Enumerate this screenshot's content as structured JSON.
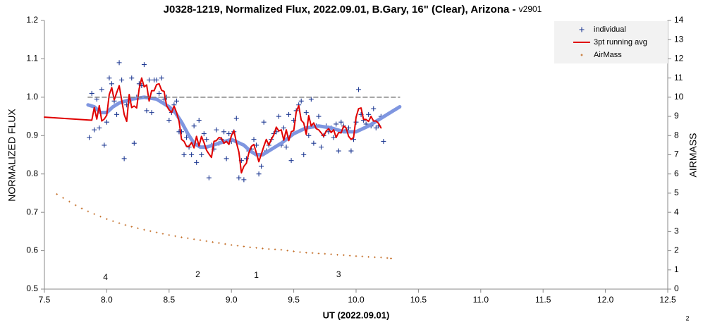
{
  "chart_data": {
    "type": "line",
    "title": "J0328-1219, Normalized Flux, 2022.09.01, B.Gary, 16\" (Clear), Arizona - ",
    "subtitle": "v2901",
    "x_label": "UT (2022.09.01)",
    "y_label": "NORMALIZED FLUX",
    "y2_label": "AIRMASS",
    "footnote": "2",
    "xlim": [
      7.5,
      12.5
    ],
    "xticks": [
      7.5,
      {
        "value": 8,
        "label": "8.0"
      },
      8.5,
      {
        "value": 9,
        "label": "9.0"
      },
      9.5,
      {
        "value": 10,
        "label": "10.0"
      },
      10.5,
      {
        "value": 11,
        "label": "11.0"
      },
      11.5,
      {
        "value": 12,
        "label": "12.0"
      },
      12.5
    ],
    "ylim": [
      0.5,
      1.2
    ],
    "yticks": [
      0.5,
      0.6,
      0.7,
      0.8,
      0.9,
      {
        "value": 1,
        "label": "1.0"
      },
      1.1,
      1.2
    ],
    "y2lim": [
      0,
      14
    ],
    "y2ticks": [
      0,
      1,
      2,
      3,
      4,
      5,
      6,
      7,
      8,
      9,
      10,
      11,
      12,
      13,
      14
    ],
    "grid": false,
    "legend": "upper right",
    "series": [
      {
        "name": "individual",
        "kind": "points",
        "marker": "plus",
        "color": "#1f3a93",
        "x": [
          7.86,
          7.88,
          7.9,
          7.92,
          7.94,
          7.96,
          7.98,
          8.0,
          8.02,
          8.04,
          8.06,
          8.08,
          8.1,
          8.12,
          8.14,
          8.16,
          8.18,
          8.2,
          8.22,
          8.24,
          8.26,
          8.28,
          8.3,
          8.32,
          8.34,
          8.36,
          8.38,
          8.4,
          8.42,
          8.44,
          8.46,
          8.48,
          8.5,
          8.52,
          8.54,
          8.56,
          8.58,
          8.6,
          8.62,
          8.64,
          8.66,
          8.68,
          8.7,
          8.72,
          8.74,
          8.76,
          8.78,
          8.8,
          8.82,
          8.84,
          8.86,
          8.88,
          8.9,
          8.92,
          8.94,
          8.96,
          8.98,
          9.0,
          9.02,
          9.04,
          9.06,
          9.08,
          9.1,
          9.12,
          9.14,
          9.16,
          9.18,
          9.2,
          9.22,
          9.24,
          9.26,
          9.28,
          9.3,
          9.32,
          9.34,
          9.36,
          9.38,
          9.4,
          9.42,
          9.44,
          9.46,
          9.48,
          9.5,
          9.52,
          9.54,
          9.56,
          9.58,
          9.6,
          9.62,
          9.64,
          9.66,
          9.68,
          9.7,
          9.72,
          9.74,
          9.76,
          9.78,
          9.8,
          9.82,
          9.84,
          9.86,
          9.88,
          9.9,
          9.92,
          9.94,
          9.96,
          9.98,
          10.0,
          10.02,
          10.04,
          10.06,
          10.08,
          10.1,
          10.12,
          10.14,
          10.16,
          10.18,
          10.2,
          10.22
        ],
        "values": [
          0.895,
          1.01,
          0.915,
          0.995,
          0.92,
          1.02,
          0.875,
          0.935,
          1.05,
          1.035,
          0.99,
          0.955,
          1.09,
          1.045,
          0.84,
          0.98,
          0.99,
          1.05,
          0.88,
          1.0,
          1.035,
          1.03,
          1.085,
          0.965,
          1.045,
          0.96,
          1.045,
          1.045,
          1.01,
          1.05,
          0.995,
          1.0,
          0.94,
          0.96,
          0.98,
          0.99,
          0.91,
          0.91,
          0.85,
          0.895,
          0.87,
          0.85,
          0.925,
          0.83,
          0.94,
          0.85,
          0.905,
          0.89,
          0.79,
          0.875,
          0.865,
          0.915,
          0.88,
          0.89,
          0.91,
          0.84,
          0.905,
          0.885,
          0.91,
          0.945,
          0.79,
          0.835,
          0.785,
          0.84,
          0.86,
          0.865,
          0.89,
          0.875,
          0.8,
          0.82,
          0.935,
          0.86,
          0.875,
          0.89,
          0.905,
          0.91,
          0.95,
          0.875,
          0.92,
          0.87,
          0.955,
          0.835,
          0.94,
          0.965,
          0.98,
          0.99,
          0.85,
          0.96,
          0.9,
          0.995,
          0.88,
          0.925,
          0.95,
          0.87,
          0.9,
          0.925,
          0.91,
          0.92,
          0.895,
          0.93,
          0.86,
          0.935,
          0.925,
          0.915,
          0.92,
          0.86,
          0.89,
          0.935,
          1.02,
          0.955,
          0.94,
          0.93,
          0.955,
          0.925,
          0.97,
          0.92,
          0.925,
          0.95,
          0.885
        ]
      },
      {
        "kind": "line",
        "color": "#7f96e0",
        "line_width": 5,
        "x": [
          7.85,
          7.9,
          7.95,
          8.0,
          8.05,
          8.1,
          8.2,
          8.3,
          8.4,
          8.5,
          8.55,
          8.6,
          8.65,
          8.7,
          8.75,
          8.8,
          8.9,
          9.0,
          9.1,
          9.15,
          9.2,
          9.25,
          9.3,
          9.4,
          9.5,
          9.6,
          9.7,
          9.8,
          9.9,
          10.0,
          10.1,
          10.2,
          10.3,
          10.35
        ],
        "values": [
          0.98,
          0.975,
          0.96,
          0.96,
          0.975,
          0.985,
          0.995,
          1.0,
          0.995,
          0.975,
          0.96,
          0.935,
          0.905,
          0.88,
          0.87,
          0.87,
          0.88,
          0.89,
          0.875,
          0.86,
          0.85,
          0.85,
          0.86,
          0.88,
          0.905,
          0.92,
          0.925,
          0.92,
          0.91,
          0.91,
          0.925,
          0.945,
          0.965,
          0.975
        ]
      },
      {
        "name": "3pt running avg",
        "kind": "line",
        "color": "#e00000",
        "line_width": 2,
        "x": [
          7.5,
          7.88,
          7.9,
          7.92,
          7.94,
          7.96,
          7.98,
          8.0,
          8.02,
          8.04,
          8.06,
          8.08,
          8.1,
          8.12,
          8.14,
          8.16,
          8.18,
          8.2,
          8.22,
          8.24,
          8.26,
          8.28,
          8.3,
          8.32,
          8.34,
          8.36,
          8.38,
          8.4,
          8.42,
          8.44,
          8.46,
          8.48,
          8.5,
          8.52,
          8.54,
          8.56,
          8.58,
          8.6,
          8.62,
          8.64,
          8.66,
          8.68,
          8.7,
          8.72,
          8.74,
          8.76,
          8.78,
          8.8,
          8.82,
          8.84,
          8.86,
          8.88,
          8.9,
          8.92,
          8.94,
          8.96,
          8.98,
          9.0,
          9.02,
          9.04,
          9.06,
          9.08,
          9.1,
          9.12,
          9.14,
          9.16,
          9.18,
          9.2,
          9.22,
          9.24,
          9.26,
          9.28,
          9.3,
          9.32,
          9.34,
          9.36,
          9.38,
          9.4,
          9.42,
          9.44,
          9.46,
          9.48,
          9.5,
          9.52,
          9.54,
          9.56,
          9.58,
          9.6,
          9.62,
          9.64,
          9.66,
          9.68,
          9.7,
          9.72,
          9.74,
          9.76,
          9.78,
          9.8,
          9.82,
          9.84,
          9.86,
          9.88,
          9.9,
          9.92,
          9.94,
          9.96,
          9.98,
          10.0,
          10.02,
          10.04,
          10.06,
          10.08,
          10.1,
          10.12,
          10.14,
          10.16,
          10.18,
          10.2
        ],
        "values": [
          0.948,
          0.94,
          0.973,
          0.943,
          0.978,
          0.938,
          0.943,
          0.953,
          1.007,
          1.025,
          0.993,
          1.012,
          1.03,
          0.992,
          0.955,
          0.937,
          1.007,
          0.973,
          0.977,
          0.972,
          1.022,
          1.05,
          1.027,
          1.032,
          0.99,
          1.017,
          1.017,
          1.033,
          1.035,
          1.018,
          1.015,
          0.978,
          0.967,
          0.96,
          0.977,
          0.96,
          0.937,
          0.89,
          0.885,
          0.872,
          0.872,
          0.882,
          0.868,
          0.898,
          0.873,
          0.898,
          0.882,
          0.862,
          0.852,
          0.843,
          0.885,
          0.887,
          0.895,
          0.893,
          0.88,
          0.885,
          0.877,
          0.9,
          0.913,
          0.882,
          0.857,
          0.803,
          0.82,
          0.828,
          0.855,
          0.872,
          0.877,
          0.855,
          0.832,
          0.852,
          0.872,
          0.89,
          0.875,
          0.89,
          0.902,
          0.922,
          0.912,
          0.915,
          0.888,
          0.915,
          0.887,
          0.91,
          0.913,
          0.962,
          0.978,
          0.94,
          0.933,
          0.903,
          0.952,
          0.925,
          0.933,
          0.918,
          0.915,
          0.907,
          0.898,
          0.912,
          0.918,
          0.908,
          0.915,
          0.895,
          0.908,
          0.907,
          0.925,
          0.92,
          0.898,
          0.89,
          0.895,
          0.948,
          0.97,
          0.972,
          0.942,
          0.942,
          0.937,
          0.95,
          0.938,
          0.938,
          0.932,
          0.92
        ]
      },
      {
        "kind": "line",
        "color": "#7f7f7f",
        "line_width": 1.5,
        "line_style": "dashed",
        "x": [
          7.85,
          10.35
        ],
        "values": [
          1.0,
          1.0
        ]
      },
      {
        "name": "AirMass",
        "kind": "points",
        "marker": "dot",
        "color": "#c0651a",
        "axis": "y2",
        "x": [
          7.6,
          7.65,
          7.7,
          7.75,
          7.8,
          7.85,
          7.9,
          7.95,
          8.0,
          8.05,
          8.1,
          8.15,
          8.2,
          8.25,
          8.3,
          8.35,
          8.4,
          8.45,
          8.5,
          8.55,
          8.6,
          8.65,
          8.7,
          8.75,
          8.8,
          8.85,
          8.9,
          8.95,
          9.0,
          9.05,
          9.1,
          9.15,
          9.2,
          9.25,
          9.3,
          9.35,
          9.4,
          9.45,
          9.5,
          9.55,
          9.6,
          9.65,
          9.7,
          9.75,
          9.8,
          9.85,
          9.9,
          9.95,
          10.0,
          10.05,
          10.1,
          10.15,
          10.2,
          10.25,
          10.28
        ],
        "values": [
          4.95,
          4.75,
          4.56,
          4.37,
          4.2,
          4.05,
          3.91,
          3.78,
          3.65,
          3.54,
          3.44,
          3.34,
          3.25,
          3.17,
          3.09,
          3.02,
          2.95,
          2.88,
          2.82,
          2.76,
          2.7,
          2.65,
          2.6,
          2.55,
          2.5,
          2.45,
          2.4,
          2.35,
          2.3,
          2.26,
          2.22,
          2.18,
          2.15,
          2.12,
          2.09,
          2.07,
          2.05,
          2.01,
          1.97,
          1.93,
          1.9,
          1.88,
          1.86,
          1.84,
          1.82,
          1.79,
          1.77,
          1.74,
          1.72,
          1.7,
          1.68,
          1.66,
          1.65,
          1.62,
          1.6
        ]
      }
    ],
    "annotations": [
      {
        "text": "4",
        "x": 7.99,
        "y": 0.53
      },
      {
        "text": "2",
        "x": 8.73,
        "y": 0.537
      },
      {
        "text": "1",
        "x": 9.2,
        "y": 0.535
      },
      {
        "text": "3",
        "x": 9.86,
        "y": 0.537
      }
    ]
  }
}
